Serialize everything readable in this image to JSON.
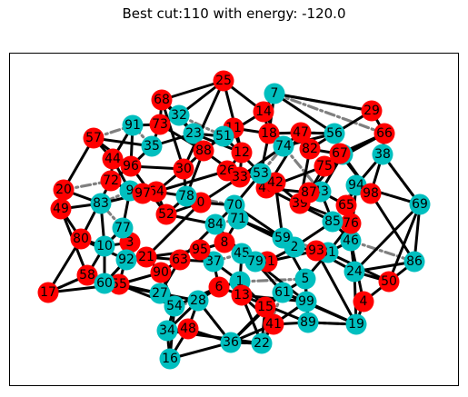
{
  "title": "Best cut:110 with energy: -120.0",
  "colors": {
    "set_a": "#ff0000",
    "set_b": "#00bfbf",
    "cut_edge": "#000000",
    "uncut_edge": "#808080"
  },
  "nodes": [
    {
      "id": "0",
      "group": "a"
    },
    {
      "id": "1",
      "group": "b"
    },
    {
      "id": "2",
      "group": "b"
    },
    {
      "id": "3",
      "group": "a"
    },
    {
      "id": "4",
      "group": "a"
    },
    {
      "id": "5",
      "group": "b"
    },
    {
      "id": "6",
      "group": "a"
    },
    {
      "id": "7",
      "group": "b"
    },
    {
      "id": "8",
      "group": "a"
    },
    {
      "id": "9",
      "group": "b"
    },
    {
      "id": "10",
      "group": "b"
    },
    {
      "id": "11",
      "group": "a"
    },
    {
      "id": "12",
      "group": "a"
    },
    {
      "id": "13",
      "group": "a"
    },
    {
      "id": "14",
      "group": "a"
    },
    {
      "id": "15",
      "group": "a"
    },
    {
      "id": "16",
      "group": "b"
    },
    {
      "id": "17",
      "group": "a"
    },
    {
      "id": "18",
      "group": "a"
    },
    {
      "id": "19",
      "group": "b"
    },
    {
      "id": "20",
      "group": "a"
    },
    {
      "id": "21",
      "group": "a"
    },
    {
      "id": "22",
      "group": "b"
    },
    {
      "id": "23",
      "group": "b"
    },
    {
      "id": "24",
      "group": "b"
    },
    {
      "id": "25",
      "group": "a"
    },
    {
      "id": "26",
      "group": "a"
    },
    {
      "id": "27",
      "group": "b"
    },
    {
      "id": "28",
      "group": "b"
    },
    {
      "id": "29",
      "group": "a"
    },
    {
      "id": "30",
      "group": "a"
    },
    {
      "id": "31",
      "group": "a"
    },
    {
      "id": "32",
      "group": "b"
    },
    {
      "id": "33",
      "group": "a"
    },
    {
      "id": "34",
      "group": "b"
    },
    {
      "id": "35",
      "group": "b"
    },
    {
      "id": "36",
      "group": "b"
    },
    {
      "id": "37",
      "group": "b"
    },
    {
      "id": "38",
      "group": "b"
    },
    {
      "id": "39",
      "group": "a"
    },
    {
      "id": "40",
      "group": "a"
    },
    {
      "id": "41",
      "group": "a"
    },
    {
      "id": "42",
      "group": "a"
    },
    {
      "id": "43",
      "group": "b"
    },
    {
      "id": "44",
      "group": "a"
    },
    {
      "id": "45",
      "group": "b"
    },
    {
      "id": "46",
      "group": "b"
    },
    {
      "id": "47",
      "group": "a"
    },
    {
      "id": "48",
      "group": "a"
    },
    {
      "id": "49",
      "group": "a"
    },
    {
      "id": "50",
      "group": "a"
    },
    {
      "id": "51",
      "group": "b"
    },
    {
      "id": "52",
      "group": "a"
    },
    {
      "id": "53",
      "group": "b"
    },
    {
      "id": "54",
      "group": "b"
    },
    {
      "id": "55",
      "group": "a"
    },
    {
      "id": "56",
      "group": "b"
    },
    {
      "id": "57",
      "group": "a"
    },
    {
      "id": "58",
      "group": "a"
    },
    {
      "id": "59",
      "group": "b"
    },
    {
      "id": "60",
      "group": "b"
    },
    {
      "id": "61",
      "group": "b"
    },
    {
      "id": "62",
      "group": "b"
    },
    {
      "id": "63",
      "group": "a"
    },
    {
      "id": "64",
      "group": "a"
    },
    {
      "id": "65",
      "group": "a"
    },
    {
      "id": "66",
      "group": "a"
    },
    {
      "id": "67",
      "group": "a"
    },
    {
      "id": "68",
      "group": "a"
    },
    {
      "id": "69",
      "group": "b"
    },
    {
      "id": "70",
      "group": "b"
    },
    {
      "id": "71",
      "group": "b"
    },
    {
      "id": "72",
      "group": "a"
    },
    {
      "id": "73",
      "group": "a"
    },
    {
      "id": "74",
      "group": "b"
    },
    {
      "id": "75",
      "group": "a"
    },
    {
      "id": "76",
      "group": "a"
    },
    {
      "id": "77",
      "group": "b"
    },
    {
      "id": "78",
      "group": "b"
    },
    {
      "id": "79",
      "group": "b"
    },
    {
      "id": "80",
      "group": "a"
    },
    {
      "id": "81",
      "group": "b"
    },
    {
      "id": "82",
      "group": "a"
    },
    {
      "id": "83",
      "group": "b"
    },
    {
      "id": "84",
      "group": "b"
    },
    {
      "id": "85",
      "group": "b"
    },
    {
      "id": "86",
      "group": "b"
    },
    {
      "id": "87",
      "group": "a"
    },
    {
      "id": "88",
      "group": "a"
    },
    {
      "id": "89",
      "group": "b"
    },
    {
      "id": "90",
      "group": "a"
    },
    {
      "id": "91",
      "group": "b"
    },
    {
      "id": "92",
      "group": "b"
    },
    {
      "id": "93",
      "group": "a"
    },
    {
      "id": "94",
      "group": "b"
    },
    {
      "id": "95",
      "group": "a"
    },
    {
      "id": "96",
      "group": "a"
    },
    {
      "id": "97",
      "group": "a"
    },
    {
      "id": "98",
      "group": "a"
    },
    {
      "id": "99",
      "group": "b"
    }
  ],
  "edges": [
    [
      "25",
      "68"
    ],
    [
      "25",
      "32"
    ],
    [
      "25",
      "14"
    ],
    [
      "25",
      "30"
    ],
    [
      "68",
      "32"
    ],
    [
      "68",
      "30"
    ],
    [
      "32",
      "23"
    ],
    [
      "23",
      "12"
    ],
    [
      "14",
      "18"
    ],
    [
      "18",
      "47"
    ],
    [
      "47",
      "56"
    ],
    [
      "47",
      "74"
    ],
    [
      "7",
      "14"
    ],
    [
      "7",
      "29"
    ],
    [
      "7",
      "56"
    ],
    [
      "29",
      "66"
    ],
    [
      "66",
      "75"
    ],
    [
      "56",
      "82"
    ],
    [
      "91",
      "73"
    ],
    [
      "73",
      "35"
    ],
    [
      "35",
      "96"
    ],
    [
      "57",
      "44"
    ],
    [
      "44",
      "72"
    ],
    [
      "72",
      "9"
    ],
    [
      "20",
      "49"
    ],
    [
      "49",
      "83"
    ],
    [
      "9",
      "64"
    ],
    [
      "64",
      "78"
    ],
    [
      "78",
      "52"
    ],
    [
      "52",
      "84"
    ],
    [
      "84",
      "8"
    ],
    [
      "8",
      "45"
    ],
    [
      "45",
      "79"
    ],
    [
      "79",
      "31"
    ],
    [
      "31",
      "2"
    ],
    [
      "2",
      "93"
    ],
    [
      "93",
      "81"
    ],
    [
      "81",
      "46"
    ],
    [
      "46",
      "24"
    ],
    [
      "24",
      "50"
    ],
    [
      "50",
      "86"
    ],
    [
      "86",
      "69"
    ],
    [
      "69",
      "94"
    ],
    [
      "94",
      "98"
    ],
    [
      "98",
      "38"
    ],
    [
      "38",
      "66"
    ],
    [
      "62",
      "75"
    ],
    [
      "62",
      "43"
    ],
    [
      "43",
      "39"
    ],
    [
      "39",
      "87"
    ],
    [
      "87",
      "40"
    ],
    [
      "40",
      "42"
    ],
    [
      "42",
      "53"
    ],
    [
      "53",
      "26"
    ],
    [
      "26",
      "33"
    ],
    [
      "33",
      "88"
    ],
    [
      "88",
      "30"
    ],
    [
      "30",
      "96"
    ],
    [
      "96",
      "72"
    ],
    [
      "80",
      "10"
    ],
    [
      "10",
      "77"
    ],
    [
      "77",
      "3"
    ],
    [
      "3",
      "92"
    ],
    [
      "92",
      "60"
    ],
    [
      "60",
      "58"
    ],
    [
      "58",
      "17"
    ],
    [
      "55",
      "27"
    ],
    [
      "27",
      "54"
    ],
    [
      "54",
      "34"
    ],
    [
      "34",
      "16"
    ],
    [
      "16",
      "36"
    ],
    [
      "36",
      "22"
    ],
    [
      "22",
      "41"
    ],
    [
      "41",
      "89"
    ],
    [
      "89",
      "19"
    ],
    [
      "19",
      "4"
    ],
    [
      "4",
      "50"
    ],
    [
      "15",
      "61"
    ],
    [
      "61",
      "5"
    ],
    [
      "5",
      "99"
    ],
    [
      "99",
      "13"
    ],
    [
      "13",
      "1"
    ],
    [
      "1",
      "6"
    ],
    [
      "6",
      "37"
    ],
    [
      "37",
      "63"
    ],
    [
      "63",
      "90"
    ],
    [
      "90",
      "21"
    ],
    [
      "21",
      "95"
    ],
    [
      "95",
      "8"
    ],
    [
      "0",
      "70"
    ],
    [
      "70",
      "71"
    ],
    [
      "71",
      "59"
    ],
    [
      "59",
      "2"
    ],
    [
      "85",
      "76"
    ],
    [
      "76",
      "65"
    ],
    [
      "65",
      "43"
    ],
    [
      "67",
      "75"
    ],
    [
      "12",
      "11"
    ],
    [
      "11",
      "51"
    ],
    [
      "51",
      "23"
    ],
    [
      "97",
      "83"
    ],
    [
      "48",
      "28"
    ],
    [
      "28",
      "27"
    ],
    [
      "74",
      "33"
    ],
    [
      "57",
      "35"
    ],
    [
      "20",
      "83"
    ],
    [
      "49",
      "80"
    ],
    [
      "80",
      "17"
    ],
    [
      "3",
      "55"
    ],
    [
      "21",
      "0"
    ],
    [
      "0",
      "78"
    ],
    [
      "90",
      "54"
    ],
    [
      "48",
      "36"
    ],
    [
      "22",
      "15"
    ],
    [
      "41",
      "15"
    ],
    [
      "89",
      "5"
    ],
    [
      "19",
      "24"
    ],
    [
      "99",
      "41"
    ],
    [
      "37",
      "1"
    ],
    [
      "61",
      "99"
    ],
    [
      "85",
      "46"
    ],
    [
      "59",
      "5"
    ],
    [
      "40",
      "85"
    ],
    [
      "53",
      "40"
    ],
    [
      "12",
      "26"
    ],
    [
      "82",
      "62"
    ],
    [
      "67",
      "98"
    ],
    [
      "94",
      "65"
    ],
    [
      "38",
      "94"
    ],
    [
      "29",
      "56"
    ],
    [
      "73",
      "68"
    ],
    [
      "88",
      "11"
    ],
    [
      "52",
      "0"
    ],
    [
      "84",
      "70"
    ],
    [
      "45",
      "1"
    ],
    [
      "16",
      "48"
    ],
    [
      "4",
      "46"
    ],
    [
      "93",
      "24"
    ],
    [
      "31",
      "45"
    ],
    [
      "74",
      "18"
    ],
    [
      "44",
      "91"
    ],
    [
      "97",
      "9"
    ],
    [
      "77",
      "92"
    ],
    [
      "10",
      "60"
    ],
    [
      "63",
      "27"
    ],
    [
      "6",
      "28"
    ],
    [
      "13",
      "22"
    ],
    [
      "61",
      "19"
    ],
    [
      "86",
      "24"
    ],
    [
      "69",
      "50"
    ],
    [
      "81",
      "5"
    ],
    [
      "87",
      "62"
    ],
    [
      "59",
      "42"
    ],
    [
      "71",
      "8"
    ],
    [
      "53",
      "70"
    ],
    [
      "30",
      "64"
    ],
    [
      "32",
      "73"
    ],
    [
      "51",
      "14"
    ],
    [
      "33",
      "12"
    ],
    [
      "82",
      "47"
    ],
    [
      "39",
      "76"
    ],
    [
      "2",
      "85"
    ],
    [
      "65",
      "46"
    ],
    [
      "76",
      "81"
    ],
    [
      "93",
      "19"
    ],
    [
      "79",
      "61"
    ],
    [
      "15",
      "36"
    ],
    [
      "34",
      "28"
    ],
    [
      "54",
      "6"
    ],
    [
      "90",
      "55"
    ],
    [
      "92",
      "21"
    ],
    [
      "3",
      "10"
    ],
    [
      "72",
      "80"
    ],
    [
      "9",
      "77"
    ],
    [
      "83",
      "10"
    ],
    [
      "57",
      "96"
    ],
    [
      "35",
      "23"
    ],
    [
      "91",
      "96"
    ],
    [
      "30",
      "78"
    ],
    [
      "64",
      "52"
    ],
    [
      "26",
      "42"
    ],
    [
      "66",
      "67"
    ],
    [
      "47",
      "40"
    ],
    [
      "18",
      "53"
    ],
    [
      "11",
      "18"
    ],
    [
      "88",
      "78"
    ],
    [
      "95",
      "37"
    ],
    [
      "8",
      "31"
    ],
    [
      "79",
      "99"
    ],
    [
      "1",
      "15"
    ],
    [
      "6",
      "13"
    ],
    [
      "13",
      "89"
    ],
    [
      "5",
      "89"
    ],
    [
      "99",
      "19"
    ],
    [
      "36",
      "41"
    ],
    [
      "28",
      "36"
    ],
    [
      "55",
      "54"
    ],
    [
      "60",
      "27"
    ],
    [
      "58",
      "10"
    ],
    [
      "97",
      "64"
    ],
    [
      "20",
      "57"
    ],
    [
      "49",
      "58"
    ],
    [
      "84",
      "45"
    ],
    [
      "70",
      "59"
    ],
    [
      "71",
      "2"
    ],
    [
      "43",
      "85"
    ],
    [
      "39",
      "42"
    ],
    [
      "87",
      "75"
    ],
    [
      "62",
      "98"
    ],
    [
      "98",
      "86"
    ],
    [
      "69",
      "38"
    ],
    [
      "94",
      "46"
    ],
    [
      "56",
      "74"
    ],
    [
      "7",
      "18"
    ],
    [
      "25",
      "12"
    ],
    [
      "14",
      "74"
    ],
    [
      "73",
      "88"
    ],
    [
      "68",
      "23"
    ],
    [
      "33",
      "0"
    ],
    [
      "63",
      "84"
    ],
    [
      "21",
      "63"
    ],
    [
      "31",
      "93"
    ],
    [
      "81",
      "50"
    ],
    [
      "24",
      "69"
    ],
    [
      "61",
      "36"
    ],
    [
      "41",
      "13"
    ],
    [
      "22",
      "34"
    ],
    [
      "16",
      "54"
    ],
    [
      "48",
      "34"
    ],
    [
      "17",
      "55"
    ],
    [
      "80",
      "92"
    ],
    [
      "44",
      "9"
    ],
    [
      "96",
      "52"
    ],
    [
      "26",
      "64"
    ],
    [
      "51",
      "53"
    ],
    [
      "75",
      "40"
    ],
    [
      "82",
      "39"
    ],
    [
      "66",
      "62"
    ]
  ],
  "uncut_edges": [
    [
      "7",
      "66"
    ],
    [
      "7",
      "29"
    ],
    [
      "32",
      "51"
    ],
    [
      "47",
      "56"
    ],
    [
      "74",
      "43"
    ],
    [
      "56",
      "62"
    ],
    [
      "38",
      "69"
    ],
    [
      "46",
      "86"
    ],
    [
      "85",
      "94"
    ],
    [
      "59",
      "81"
    ],
    [
      "84",
      "71"
    ],
    [
      "70",
      "78"
    ],
    [
      "45",
      "37"
    ],
    [
      "28",
      "54"
    ],
    [
      "27",
      "54"
    ],
    [
      "34",
      "16"
    ],
    [
      "36",
      "22"
    ],
    [
      "19",
      "89"
    ],
    [
      "24",
      "46"
    ],
    [
      "60",
      "92"
    ],
    [
      "10",
      "77"
    ],
    [
      "9",
      "83"
    ],
    [
      "35",
      "91"
    ],
    [
      "23",
      "51"
    ],
    [
      "53",
      "74"
    ],
    [
      "2",
      "59"
    ],
    [
      "1",
      "5"
    ],
    [
      "5",
      "61"
    ],
    [
      "89",
      "99"
    ],
    [
      "77",
      "83"
    ],
    [
      "94",
      "69"
    ],
    [
      "17",
      "58"
    ],
    [
      "58",
      "60"
    ],
    [
      "20",
      "72"
    ],
    [
      "57",
      "91"
    ],
    [
      "61",
      "22"
    ],
    [
      "36",
      "28"
    ]
  ]
}
